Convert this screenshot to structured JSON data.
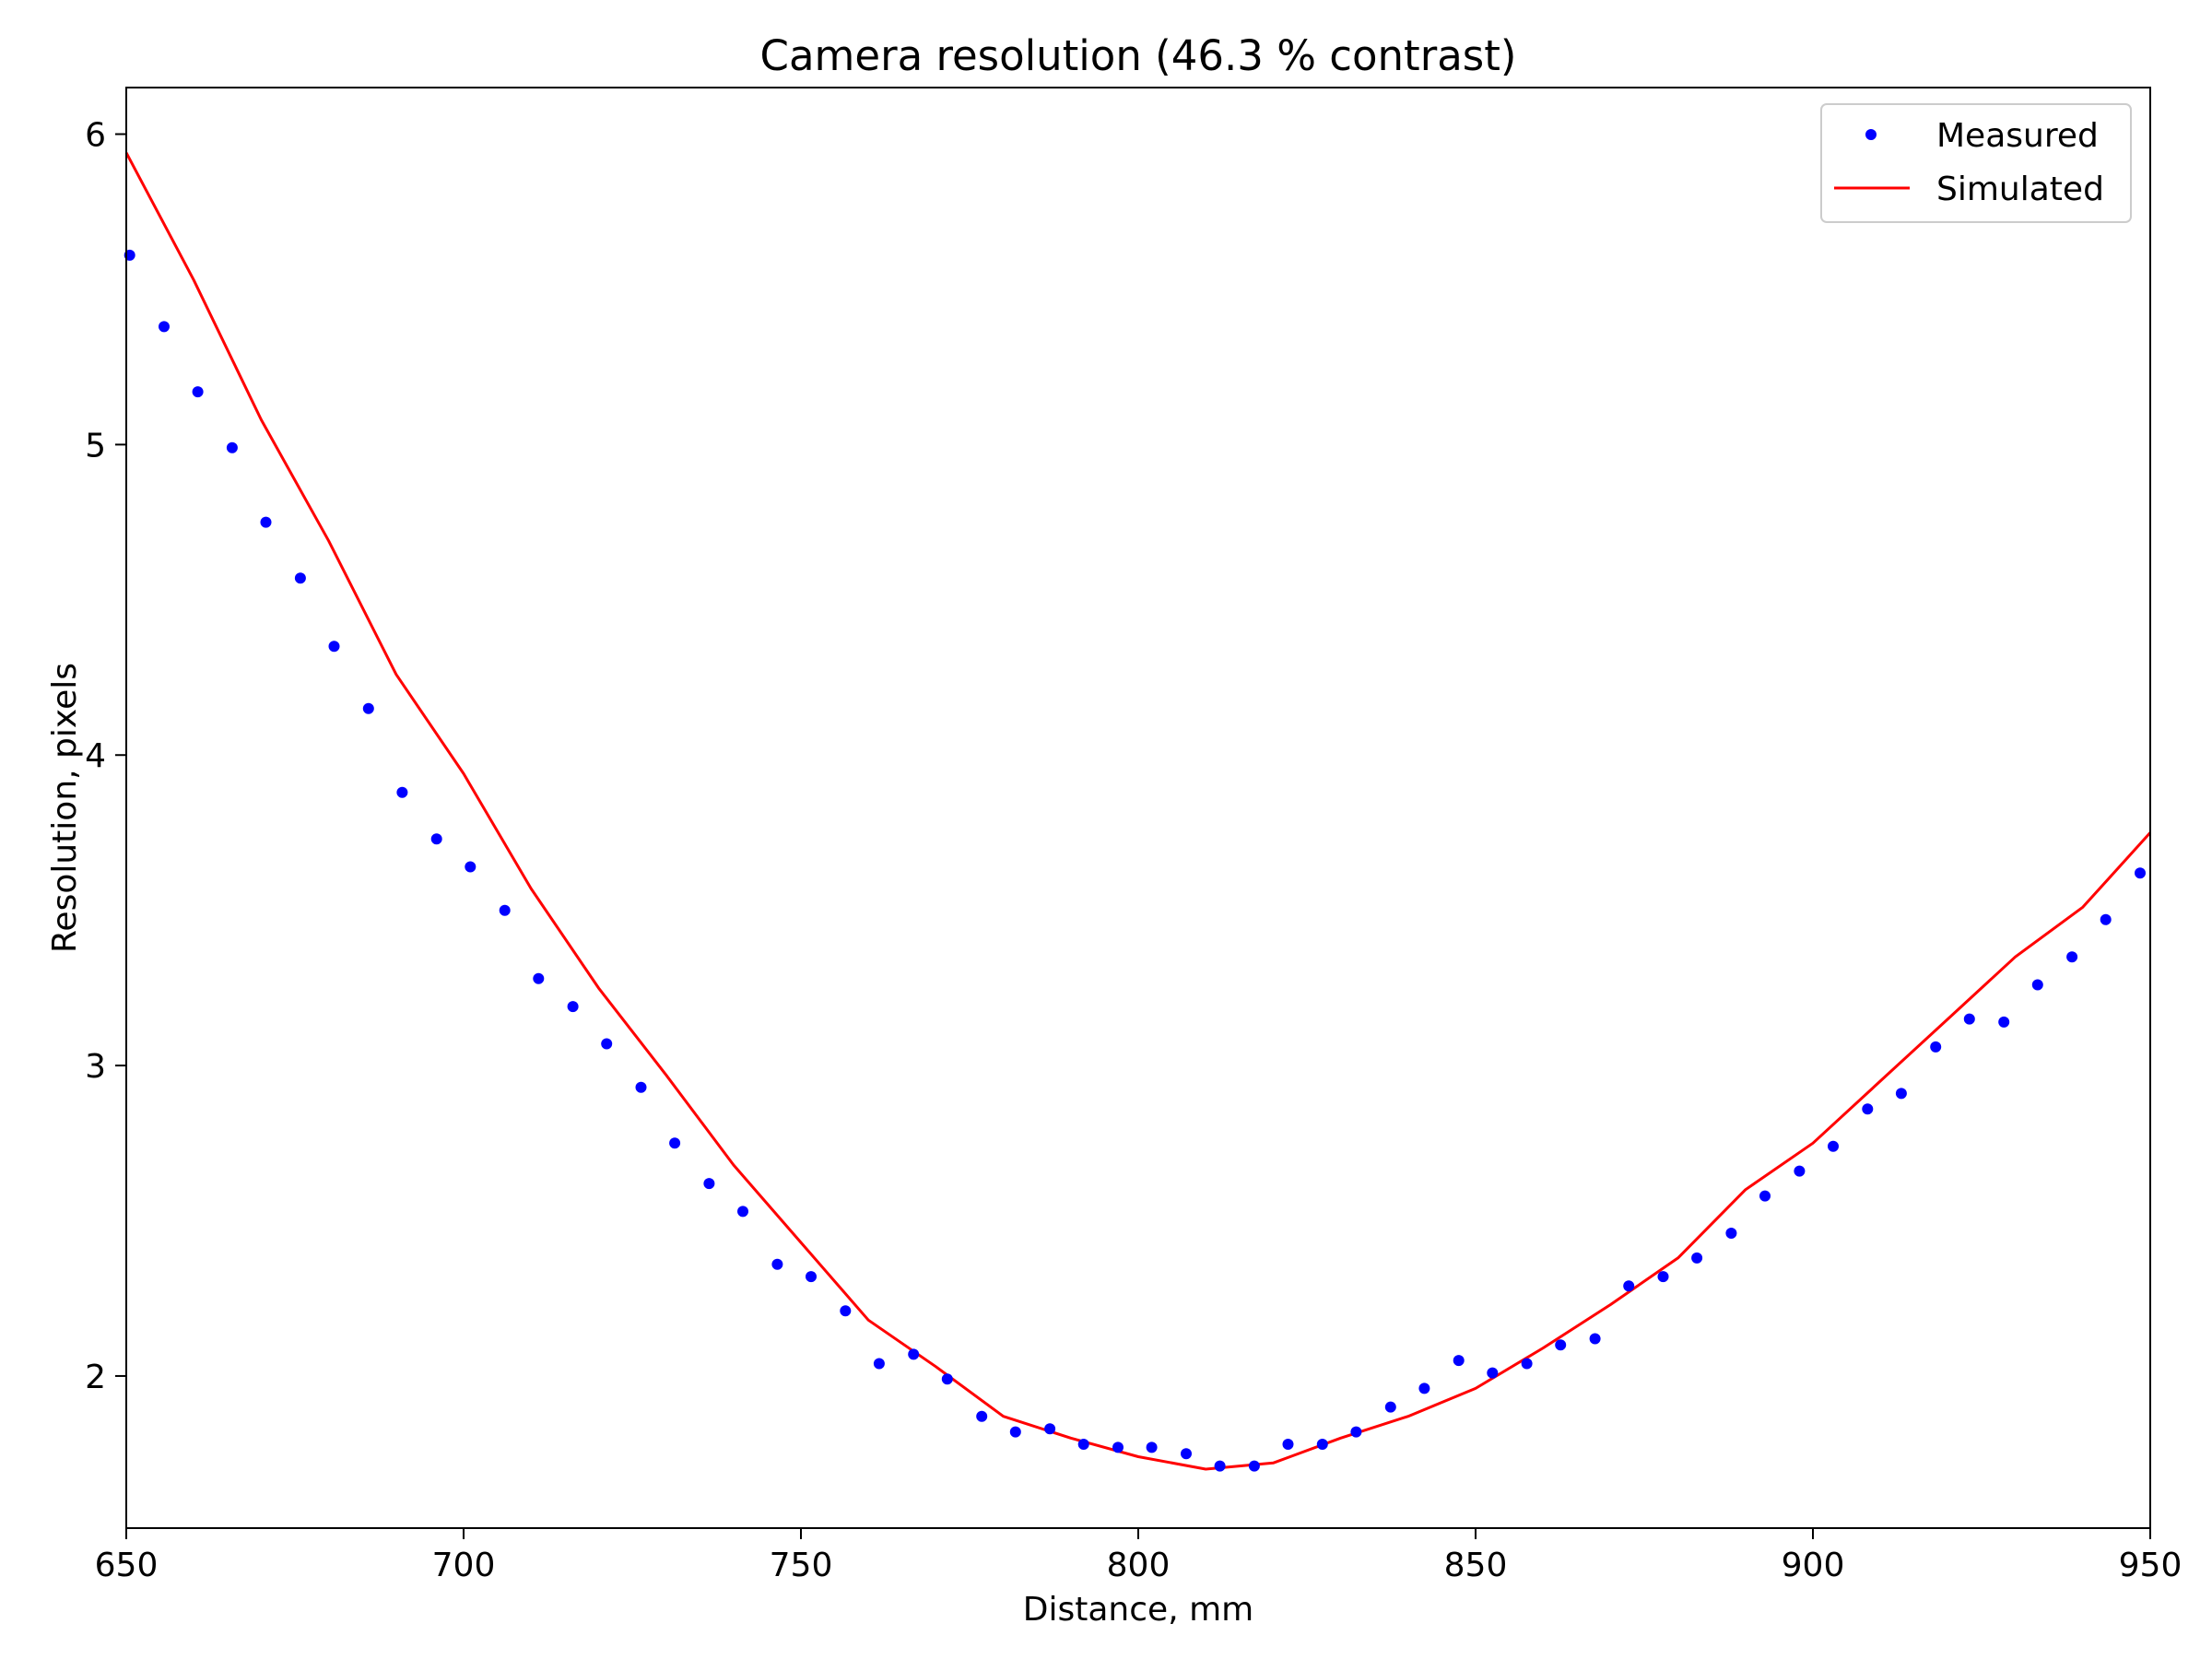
{
  "chart_data": {
    "type": "line",
    "title": "Camera resolution (46.3 % contrast)",
    "xlabel": "Distance, mm",
    "ylabel": "Resolution, pixels",
    "xlim": [
      650,
      950
    ],
    "ylim": [
      1.51,
      6.15
    ],
    "xticks": [
      650,
      700,
      750,
      800,
      850,
      900,
      950
    ],
    "yticks": [
      2,
      3,
      4,
      5,
      6
    ],
    "grid": false,
    "legend_position": "top-right",
    "series": [
      {
        "name": "Measured",
        "style": "points",
        "color": "#0000ff",
        "x": [
          650.5,
          655.6,
          660.6,
          665.7,
          670.7,
          675.8,
          680.8,
          685.9,
          690.9,
          696.0,
          701.0,
          706.1,
          711.1,
          716.2,
          721.2,
          726.3,
          731.3,
          736.4,
          741.4,
          746.5,
          751.5,
          756.6,
          761.6,
          766.7,
          771.7,
          776.8,
          781.8,
          786.9,
          791.9,
          797.0,
          802.0,
          807.1,
          812.1,
          817.2,
          822.2,
          827.3,
          832.3,
          837.4,
          842.4,
          847.5,
          852.5,
          857.6,
          862.6,
          867.7,
          872.7,
          877.8,
          882.8,
          887.9,
          892.9,
          898.0,
          903.0,
          908.1,
          913.1,
          918.2,
          923.2,
          928.3,
          933.3,
          938.4,
          943.4,
          948.5
        ],
        "y": [
          5.61,
          5.38,
          5.17,
          4.99,
          4.75,
          4.57,
          4.35,
          4.15,
          3.88,
          3.73,
          3.64,
          3.5,
          3.28,
          3.19,
          3.07,
          2.93,
          2.75,
          2.62,
          2.53,
          2.36,
          2.32,
          2.21,
          2.04,
          2.07,
          1.99,
          1.87,
          1.82,
          1.83,
          1.78,
          1.77,
          1.77,
          1.75,
          1.71,
          1.71,
          1.78,
          1.78,
          1.82,
          1.9,
          1.96,
          2.05,
          2.01,
          2.04,
          2.1,
          2.12,
          2.29,
          2.32,
          2.38,
          2.46,
          2.58,
          2.66,
          2.74,
          2.86,
          2.91,
          3.06,
          3.15,
          3.14,
          3.26,
          3.35,
          3.47,
          3.62
        ]
      },
      {
        "name": "Simulated",
        "style": "line",
        "color": "#ff0000",
        "x": [
          650,
          660,
          670,
          680,
          690,
          700,
          710,
          720,
          730,
          740,
          750,
          760,
          770,
          780,
          790,
          800,
          810,
          820,
          830,
          840,
          850,
          860,
          870,
          880,
          890,
          900,
          910,
          920,
          930,
          940,
          950
        ],
        "y": [
          5.94,
          5.53,
          5.08,
          4.69,
          4.26,
          3.94,
          3.57,
          3.25,
          2.97,
          2.68,
          2.43,
          2.18,
          2.03,
          1.87,
          1.8,
          1.74,
          1.7,
          1.72,
          1.8,
          1.87,
          1.96,
          2.09,
          2.23,
          2.38,
          2.6,
          2.75,
          2.95,
          3.15,
          3.35,
          3.51,
          3.75
        ]
      }
    ]
  }
}
